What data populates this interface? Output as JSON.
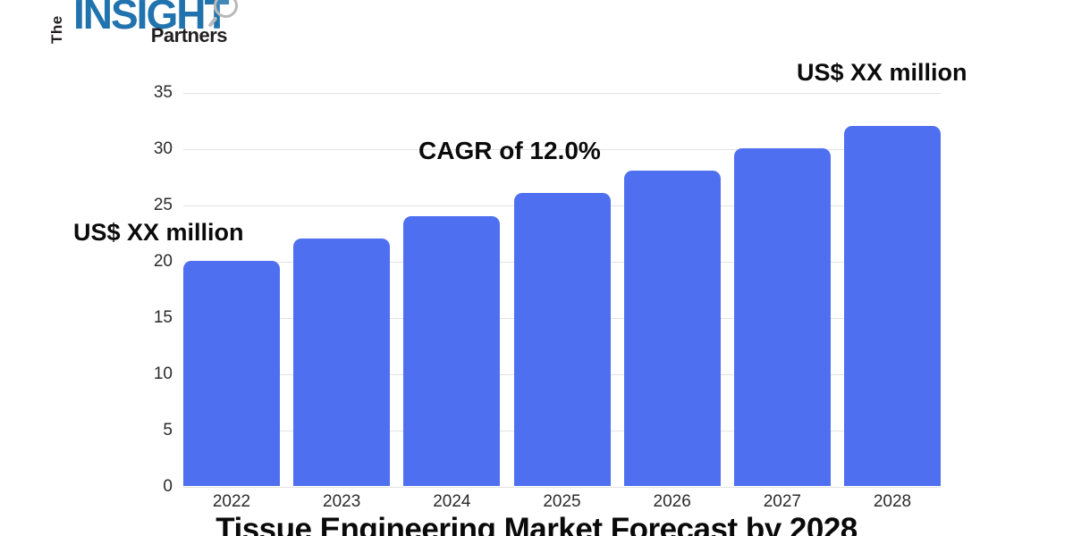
{
  "logo": {
    "the_label": "The",
    "insight_label": "INSIGHT",
    "partners_label": "Partners",
    "insight_color": "#2173ae",
    "dark_color": "#231f20"
  },
  "chart_data": {
    "type": "bar",
    "title": "Tissue Engineering Market Forecast by 2028",
    "categories": [
      "2022",
      "2023",
      "2024",
      "2025",
      "2026",
      "2027",
      "2028"
    ],
    "values": [
      20,
      22,
      24,
      26,
      28,
      30,
      32
    ],
    "xlabel": "",
    "ylabel": "",
    "ylim": [
      0,
      35
    ],
    "yticks": [
      0,
      5,
      10,
      15,
      20,
      25,
      30,
      35
    ],
    "grid": true,
    "legend": false,
    "bar_color": "#4e70f0",
    "gridline_color": "#e2e2e2",
    "annotations": [
      {
        "text": "US$ XX million",
        "position": "left-middle"
      },
      {
        "text": "CAGR of 12.0%",
        "position": "upper-center"
      },
      {
        "text": "US$ XX million",
        "position": "top-right"
      }
    ]
  }
}
